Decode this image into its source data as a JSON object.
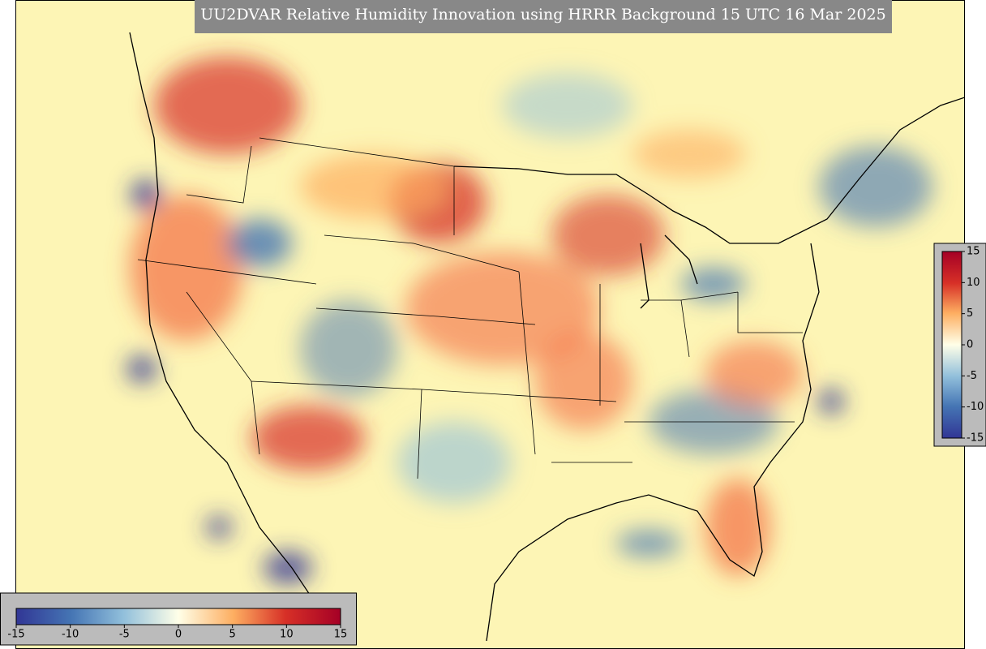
{
  "title": "UU2DVAR Relative Humidity Innovation using HRRR Background 15 UTC 16 Mar 2025",
  "colorbars": [
    {
      "orientation": "vertical",
      "range": [
        -15,
        15
      ],
      "ticks": [
        15,
        10,
        5,
        0,
        -5,
        -10,
        -15
      ]
    },
    {
      "orientation": "horizontal",
      "range": [
        -15,
        15
      ],
      "ticks": [
        -15,
        -10,
        -5,
        0,
        5,
        10,
        15
      ]
    }
  ]
}
